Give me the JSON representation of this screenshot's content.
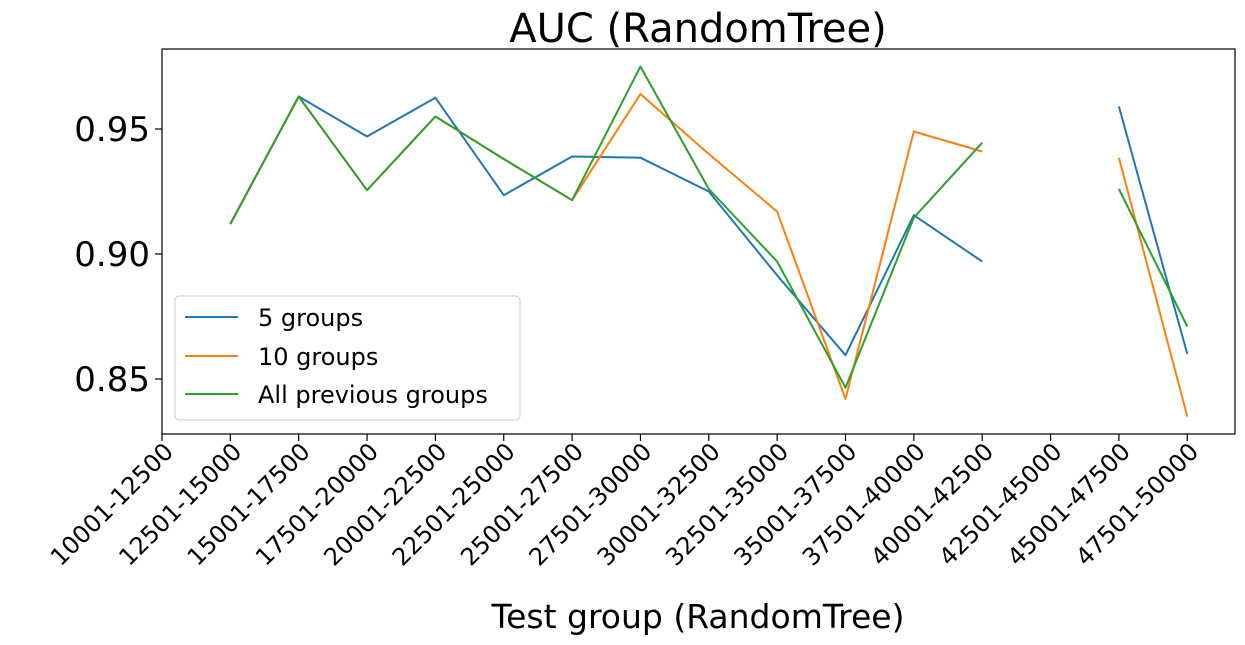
{
  "chart_data": {
    "type": "line",
    "title": "AUC (RandomTree)",
    "xlabel": "Test group (RandomTree)",
    "ylabel": "",
    "categories": [
      "10001-12500",
      "12501-15000",
      "15001-17500",
      "17501-20000",
      "20001-22500",
      "22501-25000",
      "25001-27500",
      "27501-30000",
      "30001-32500",
      "32501-35000",
      "35001-37500",
      "37501-40000",
      "40001-42500",
      "42501-45000",
      "45001-47500",
      "47501-50000"
    ],
    "yticks": [
      "0.85",
      "0.90",
      "0.95"
    ],
    "ylim": [
      0.828,
      0.982
    ],
    "legend_position": "lower-left",
    "series": [
      {
        "name": "5 groups",
        "color": "#1f77b4",
        "values": [
          null,
          0.912,
          0.963,
          0.947,
          0.9625,
          0.9235,
          0.939,
          0.9385,
          0.925,
          0.8915,
          0.8595,
          0.9155,
          0.897,
          null,
          0.959,
          0.86
        ]
      },
      {
        "name": "10 groups",
        "color": "#ff7f0e",
        "values": [
          null,
          0.912,
          0.963,
          0.9255,
          0.955,
          0.938,
          0.9215,
          0.964,
          0.94,
          0.917,
          0.842,
          0.949,
          0.941,
          null,
          0.9385,
          0.835
        ]
      },
      {
        "name": "All previous groups",
        "color": "#2ca02c",
        "values": [
          null,
          0.912,
          0.963,
          0.9255,
          0.955,
          0.938,
          0.9215,
          0.975,
          0.926,
          0.897,
          0.8465,
          0.9145,
          0.9445,
          null,
          0.926,
          0.871
        ]
      }
    ]
  }
}
